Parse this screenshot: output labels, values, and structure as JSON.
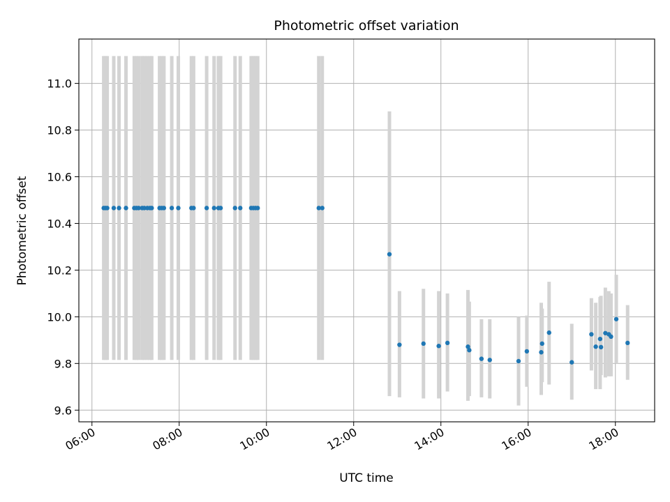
{
  "chart_data": {
    "type": "scatter",
    "title": "Photometric offset variation",
    "xlabel": "UTC time",
    "ylabel": "Photometric offset",
    "x_axis": {
      "type": "time",
      "unit": "hours UTC",
      "lim": [
        5.7,
        18.9
      ]
    },
    "ylim": [
      9.55,
      11.19
    ],
    "xticks": [
      {
        "value": 6,
        "label": "06:00"
      },
      {
        "value": 8,
        "label": "08:00"
      },
      {
        "value": 10,
        "label": "10:00"
      },
      {
        "value": 12,
        "label": "12:00"
      },
      {
        "value": 14,
        "label": "14:00"
      },
      {
        "value": 16,
        "label": "16:00"
      },
      {
        "value": 18,
        "label": "18:00"
      }
    ],
    "yticks": [
      {
        "value": 9.6,
        "label": "9.6"
      },
      {
        "value": 9.8,
        "label": "9.8"
      },
      {
        "value": 10.0,
        "label": "10.0"
      },
      {
        "value": 10.2,
        "label": "10.2"
      },
      {
        "value": 10.4,
        "label": "10.4"
      },
      {
        "value": 10.6,
        "label": "10.6"
      },
      {
        "value": 10.8,
        "label": "10.8"
      },
      {
        "value": 11.0,
        "label": "11.0"
      }
    ],
    "grid": true,
    "legend": "none",
    "colors": {
      "marker": "#1f77b4",
      "errorbar": "#d3d3d3",
      "grid": "#b0b0b0"
    },
    "series": [
      {
        "x": [
          6.27,
          6.31,
          6.35,
          6.5,
          6.62,
          6.78,
          6.97,
          7.02,
          7.07,
          7.15,
          7.2,
          7.27,
          7.33,
          7.37,
          7.55,
          7.6,
          7.65,
          7.83,
          7.98,
          8.28,
          8.33,
          8.63,
          8.8,
          8.9,
          8.95,
          9.28,
          9.4,
          9.65,
          9.7,
          9.75,
          9.8,
          11.2,
          11.28
        ],
        "y": [
          10.466,
          10.466,
          10.466,
          10.466,
          10.466,
          10.466,
          10.466,
          10.466,
          10.466,
          10.466,
          10.466,
          10.466,
          10.466,
          10.466,
          10.466,
          10.466,
          10.466,
          10.466,
          10.466,
          10.466,
          10.466,
          10.466,
          10.466,
          10.466,
          10.466,
          10.466,
          10.466,
          10.466,
          10.466,
          10.466,
          10.466,
          10.466,
          10.466
        ],
        "err_low": [
          9.815,
          9.815,
          9.815,
          9.815,
          9.815,
          9.815,
          9.815,
          9.815,
          9.815,
          9.815,
          9.815,
          9.815,
          9.815,
          9.815,
          9.815,
          9.815,
          9.815,
          9.815,
          9.815,
          9.815,
          9.815,
          9.815,
          9.815,
          9.815,
          9.815,
          9.815,
          9.815,
          9.815,
          9.815,
          9.815,
          9.815,
          9.815,
          9.815
        ],
        "err_high": [
          11.117,
          11.117,
          11.117,
          11.117,
          11.117,
          11.117,
          11.117,
          11.117,
          11.117,
          11.117,
          11.117,
          11.117,
          11.117,
          11.117,
          11.117,
          11.117,
          11.117,
          11.117,
          11.117,
          11.117,
          11.117,
          11.117,
          11.117,
          11.117,
          11.117,
          11.117,
          11.117,
          11.117,
          11.117,
          11.117,
          11.117,
          11.117,
          11.117
        ]
      },
      {
        "x": [
          12.82,
          13.05,
          13.6,
          13.95,
          14.15,
          14.62,
          14.65,
          14.93,
          15.12,
          15.78,
          15.97,
          16.3,
          16.32,
          16.48,
          17.0,
          17.45,
          17.55,
          17.65,
          17.67,
          17.77,
          17.85,
          17.9,
          18.02,
          18.28
        ],
        "y": [
          10.268,
          9.88,
          9.885,
          9.875,
          9.888,
          9.872,
          9.857,
          9.82,
          9.815,
          9.81,
          9.852,
          9.848,
          9.885,
          9.932,
          9.805,
          9.925,
          9.872,
          9.905,
          9.87,
          9.93,
          9.925,
          9.915,
          9.99,
          9.888
        ],
        "err_low": [
          9.66,
          9.655,
          9.65,
          9.65,
          9.68,
          9.64,
          9.66,
          9.655,
          9.65,
          9.62,
          9.7,
          9.665,
          9.72,
          9.71,
          9.645,
          9.77,
          9.69,
          9.69,
          9.75,
          9.74,
          9.745,
          9.745,
          9.8,
          9.73
        ],
        "err_high": [
          10.88,
          10.11,
          10.12,
          10.11,
          10.1,
          10.115,
          10.065,
          9.99,
          9.99,
          10.0,
          10.005,
          10.06,
          10.035,
          10.15,
          9.97,
          10.08,
          10.06,
          10.085,
          10.09,
          10.125,
          10.11,
          10.1,
          10.18,
          10.05
        ]
      }
    ]
  }
}
